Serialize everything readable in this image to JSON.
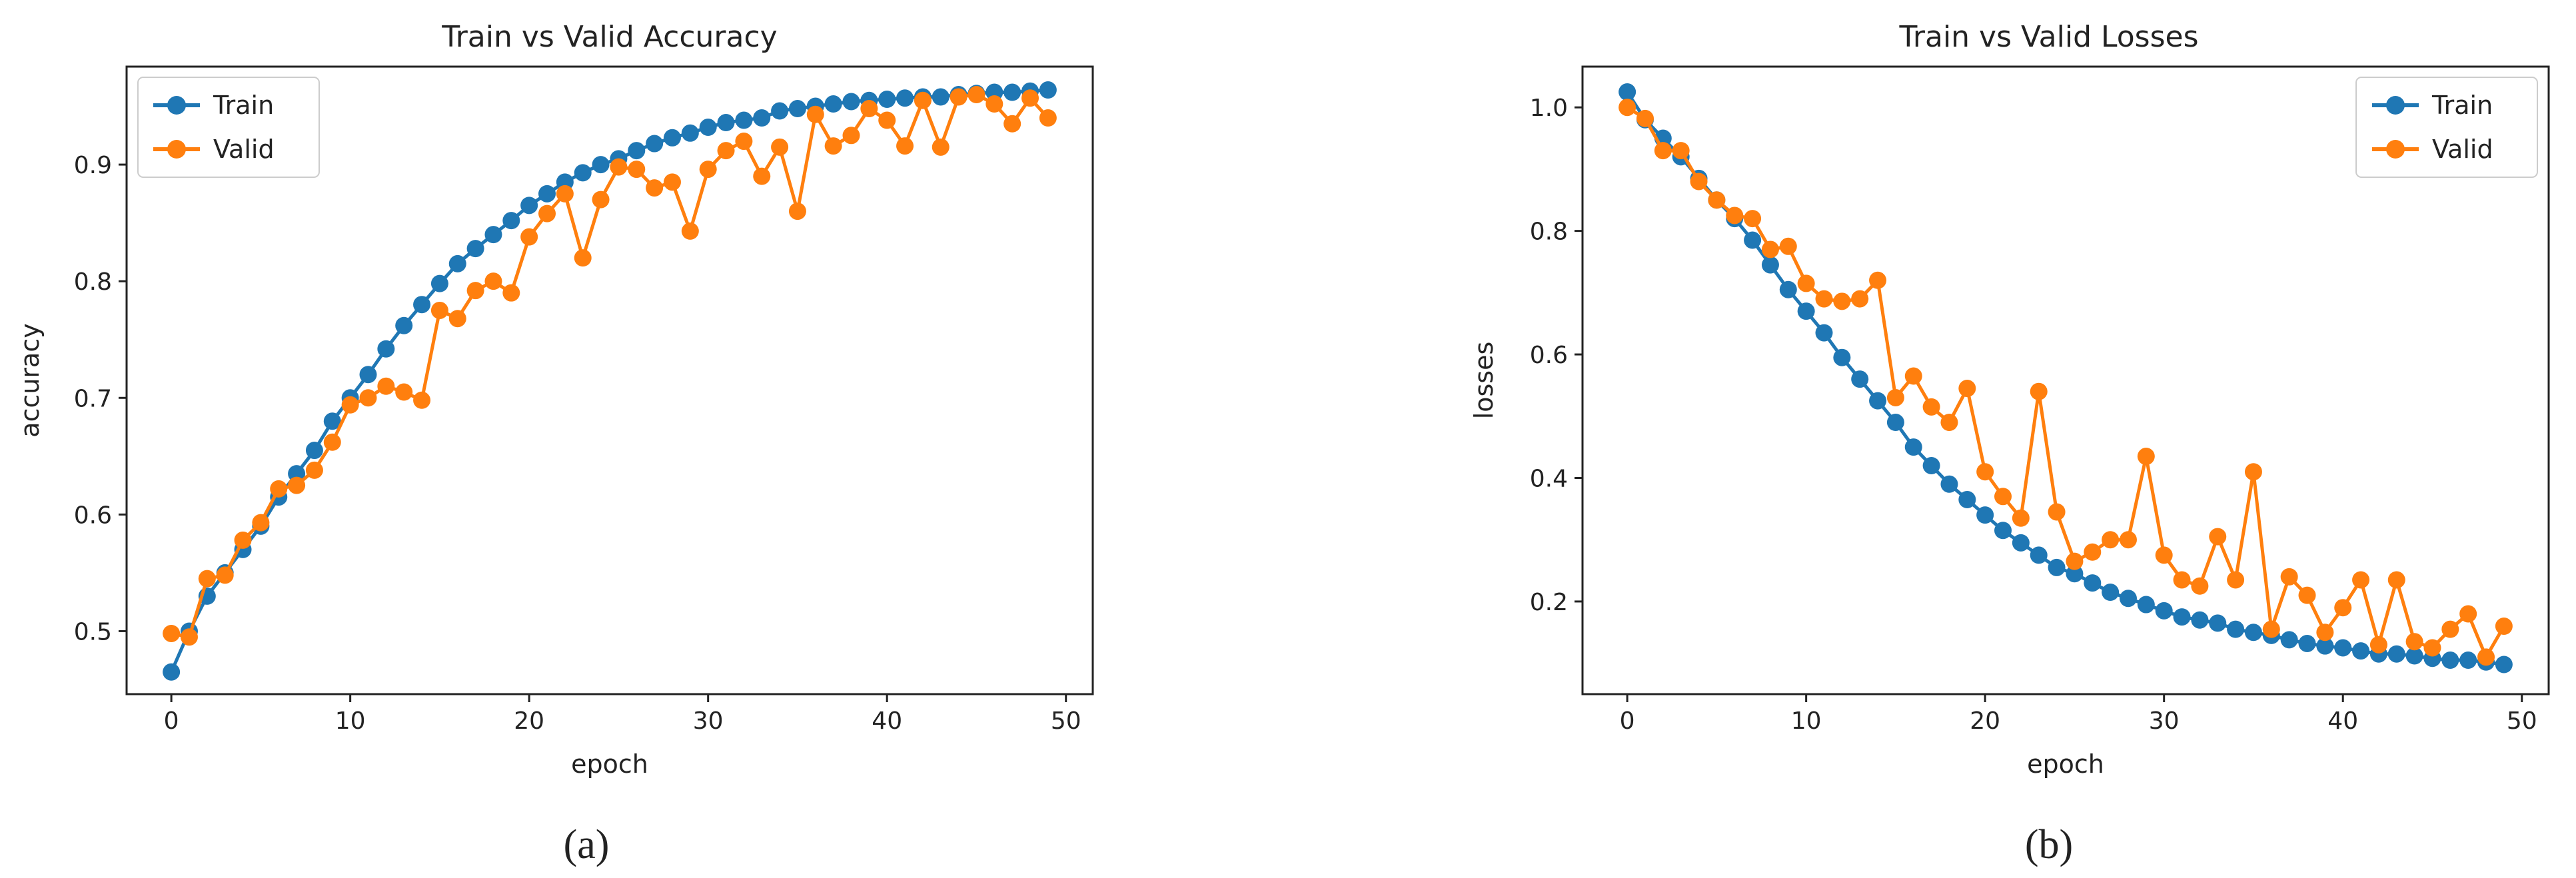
{
  "colors": {
    "train": "#1f77b4",
    "valid": "#ff7f0e",
    "axis": "#222222"
  },
  "charts": [
    {
      "caption": "(a)",
      "chart_data": {
        "type": "line",
        "title": "Train vs Valid Accuracy",
        "xlabel": "epoch",
        "ylabel": "accuracy",
        "xlim": [
          -2.5,
          51.5
        ],
        "ylim": [
          0.446,
          0.984
        ],
        "xticks": [
          0,
          10,
          20,
          30,
          40,
          50
        ],
        "xtick_labels": [
          "0",
          "10",
          "20",
          "30",
          "40",
          "50"
        ],
        "yticks": [
          0.5,
          0.6,
          0.7,
          0.8,
          0.9
        ],
        "ytick_labels": [
          "0.5",
          "0.6",
          "0.7",
          "0.8",
          "0.9"
        ],
        "grid": false,
        "legend": "top-left",
        "x": [
          0,
          1,
          2,
          3,
          4,
          5,
          6,
          7,
          8,
          9,
          10,
          11,
          12,
          13,
          14,
          15,
          16,
          17,
          18,
          19,
          20,
          21,
          22,
          23,
          24,
          25,
          26,
          27,
          28,
          29,
          30,
          31,
          32,
          33,
          34,
          35,
          36,
          37,
          38,
          39,
          40,
          41,
          42,
          43,
          44,
          45,
          46,
          47,
          48,
          49
        ],
        "series": [
          {
            "name": "Train",
            "color": "#1f77b4",
            "values": [
              0.465,
              0.5,
              0.53,
              0.55,
              0.57,
              0.59,
              0.615,
              0.635,
              0.655,
              0.68,
              0.7,
              0.72,
              0.742,
              0.762,
              0.78,
              0.798,
              0.815,
              0.828,
              0.84,
              0.852,
              0.865,
              0.875,
              0.885,
              0.893,
              0.9,
              0.905,
              0.912,
              0.918,
              0.923,
              0.927,
              0.932,
              0.936,
              0.938,
              0.94,
              0.946,
              0.948,
              0.95,
              0.952,
              0.954,
              0.955,
              0.956,
              0.957,
              0.958,
              0.958,
              0.96,
              0.961,
              0.962,
              0.962,
              0.963,
              0.964
            ]
          },
          {
            "name": "Valid",
            "color": "#ff7f0e",
            "values": [
              0.498,
              0.495,
              0.545,
              0.548,
              0.578,
              0.593,
              0.622,
              0.625,
              0.638,
              0.662,
              0.694,
              0.7,
              0.71,
              0.705,
              0.698,
              0.775,
              0.768,
              0.792,
              0.8,
              0.79,
              0.838,
              0.858,
              0.875,
              0.82,
              0.87,
              0.898,
              0.896,
              0.88,
              0.885,
              0.843,
              0.896,
              0.912,
              0.92,
              0.89,
              0.915,
              0.86,
              0.943,
              0.916,
              0.925,
              0.948,
              0.938,
              0.916,
              0.955,
              0.915,
              0.958,
              0.96,
              0.952,
              0.935,
              0.957,
              0.94
            ]
          }
        ]
      }
    },
    {
      "caption": "(b)",
      "chart_data": {
        "type": "line",
        "title": "Train vs Valid Losses",
        "xlabel": "epoch",
        "ylabel": "losses",
        "xlim": [
          -2.5,
          51.5
        ],
        "ylim": [
          0.05,
          1.066
        ],
        "xticks": [
          0,
          10,
          20,
          30,
          40,
          50
        ],
        "xtick_labels": [
          "0",
          "10",
          "20",
          "30",
          "40",
          "50"
        ],
        "yticks": [
          0.2,
          0.4,
          0.6,
          0.8,
          1.0
        ],
        "ytick_labels": [
          "0.2",
          "0.4",
          "0.6",
          "0.8",
          "1.0"
        ],
        "grid": false,
        "legend": "top-right",
        "x": [
          0,
          1,
          2,
          3,
          4,
          5,
          6,
          7,
          8,
          9,
          10,
          11,
          12,
          13,
          14,
          15,
          16,
          17,
          18,
          19,
          20,
          21,
          22,
          23,
          24,
          25,
          26,
          27,
          28,
          29,
          30,
          31,
          32,
          33,
          34,
          35,
          36,
          37,
          38,
          39,
          40,
          41,
          42,
          43,
          44,
          45,
          46,
          47,
          48,
          49
        ],
        "series": [
          {
            "name": "Train",
            "color": "#1f77b4",
            "values": [
              1.025,
              0.98,
              0.95,
              0.92,
              0.885,
              0.85,
              0.82,
              0.785,
              0.745,
              0.705,
              0.67,
              0.635,
              0.595,
              0.56,
              0.525,
              0.49,
              0.45,
              0.42,
              0.39,
              0.365,
              0.34,
              0.315,
              0.295,
              0.275,
              0.255,
              0.245,
              0.23,
              0.215,
              0.205,
              0.195,
              0.185,
              0.175,
              0.17,
              0.165,
              0.155,
              0.15,
              0.145,
              0.138,
              0.132,
              0.128,
              0.125,
              0.12,
              0.115,
              0.115,
              0.112,
              0.108,
              0.105,
              0.105,
              0.102,
              0.098
            ]
          },
          {
            "name": "Valid",
            "color": "#ff7f0e",
            "values": [
              1.0,
              0.982,
              0.93,
              0.93,
              0.88,
              0.85,
              0.825,
              0.82,
              0.77,
              0.775,
              0.715,
              0.69,
              0.686,
              0.69,
              0.72,
              0.53,
              0.565,
              0.515,
              0.49,
              0.545,
              0.41,
              0.37,
              0.335,
              0.54,
              0.345,
              0.265,
              0.28,
              0.3,
              0.3,
              0.435,
              0.275,
              0.235,
              0.225,
              0.305,
              0.235,
              0.41,
              0.155,
              0.24,
              0.21,
              0.15,
              0.19,
              0.235,
              0.13,
              0.235,
              0.135,
              0.125,
              0.155,
              0.18,
              0.11,
              0.16
            ]
          }
        ]
      }
    }
  ]
}
